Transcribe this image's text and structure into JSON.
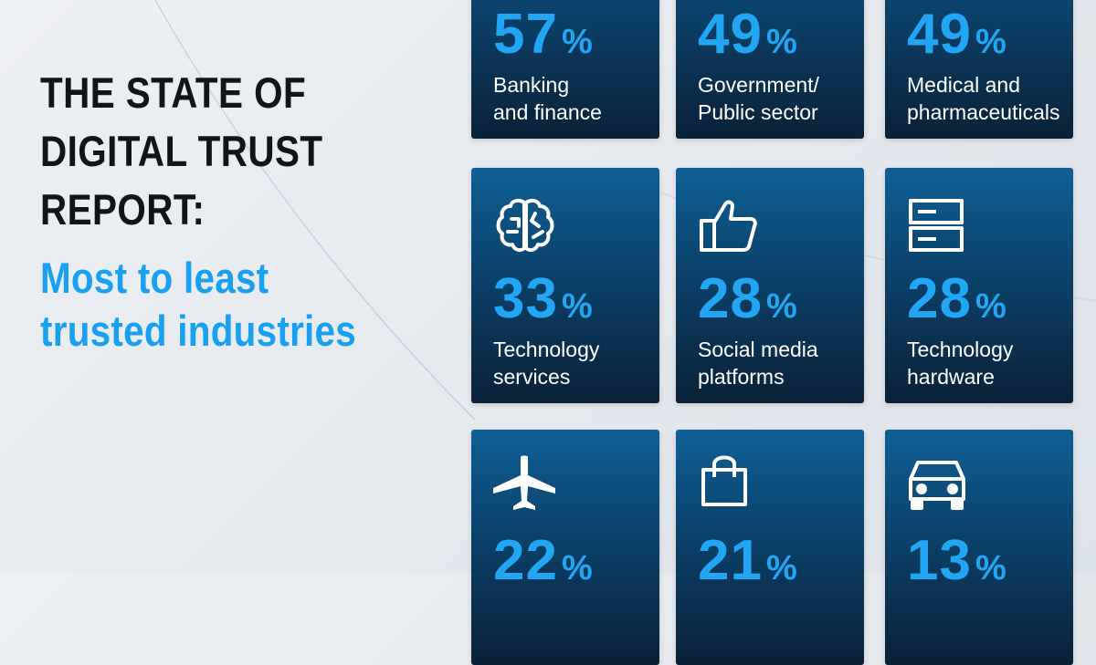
{
  "title": {
    "lines": [
      "THE STATE OF",
      "DIGITAL TRUST",
      "REPORT:"
    ],
    "subtitle_lines": [
      "Most to least",
      "trusted industries"
    ]
  },
  "colors": {
    "accent": "#21a6f3",
    "title_text": "#111418",
    "tile_top": "#0f5f95",
    "tile_bottom": "#0a2138",
    "label_text": "#ffffff"
  },
  "tiles": [
    {
      "value": "57",
      "unit": "%",
      "label_line1": "Banking",
      "label_line2": "and finance",
      "icon": "bank-icon"
    },
    {
      "value": "49",
      "unit": "%",
      "label_line1": "Government/",
      "label_line2": "Public sector",
      "icon": "government-icon"
    },
    {
      "value": "49",
      "unit": "%",
      "label_line1": "Medical and",
      "label_line2": "pharmaceuticals",
      "icon": "medical-icon"
    },
    {
      "value": "33",
      "unit": "%",
      "label_line1": "Technology",
      "label_line2": "services",
      "icon": "brain-icon"
    },
    {
      "value": "28",
      "unit": "%",
      "label_line1": "Social media",
      "label_line2": "platforms",
      "icon": "thumbs-up-icon"
    },
    {
      "value": "28",
      "unit": "%",
      "label_line1": "Technology",
      "label_line2": "hardware",
      "icon": "server-icon"
    },
    {
      "value": "22",
      "unit": "%",
      "label_line1": "",
      "label_line2": "",
      "icon": "airplane-icon"
    },
    {
      "value": "21",
      "unit": "%",
      "label_line1": "",
      "label_line2": "",
      "icon": "shopping-bag-icon"
    },
    {
      "value": "13",
      "unit": "%",
      "label_line1": "",
      "label_line2": "",
      "icon": "car-icon"
    }
  ]
}
